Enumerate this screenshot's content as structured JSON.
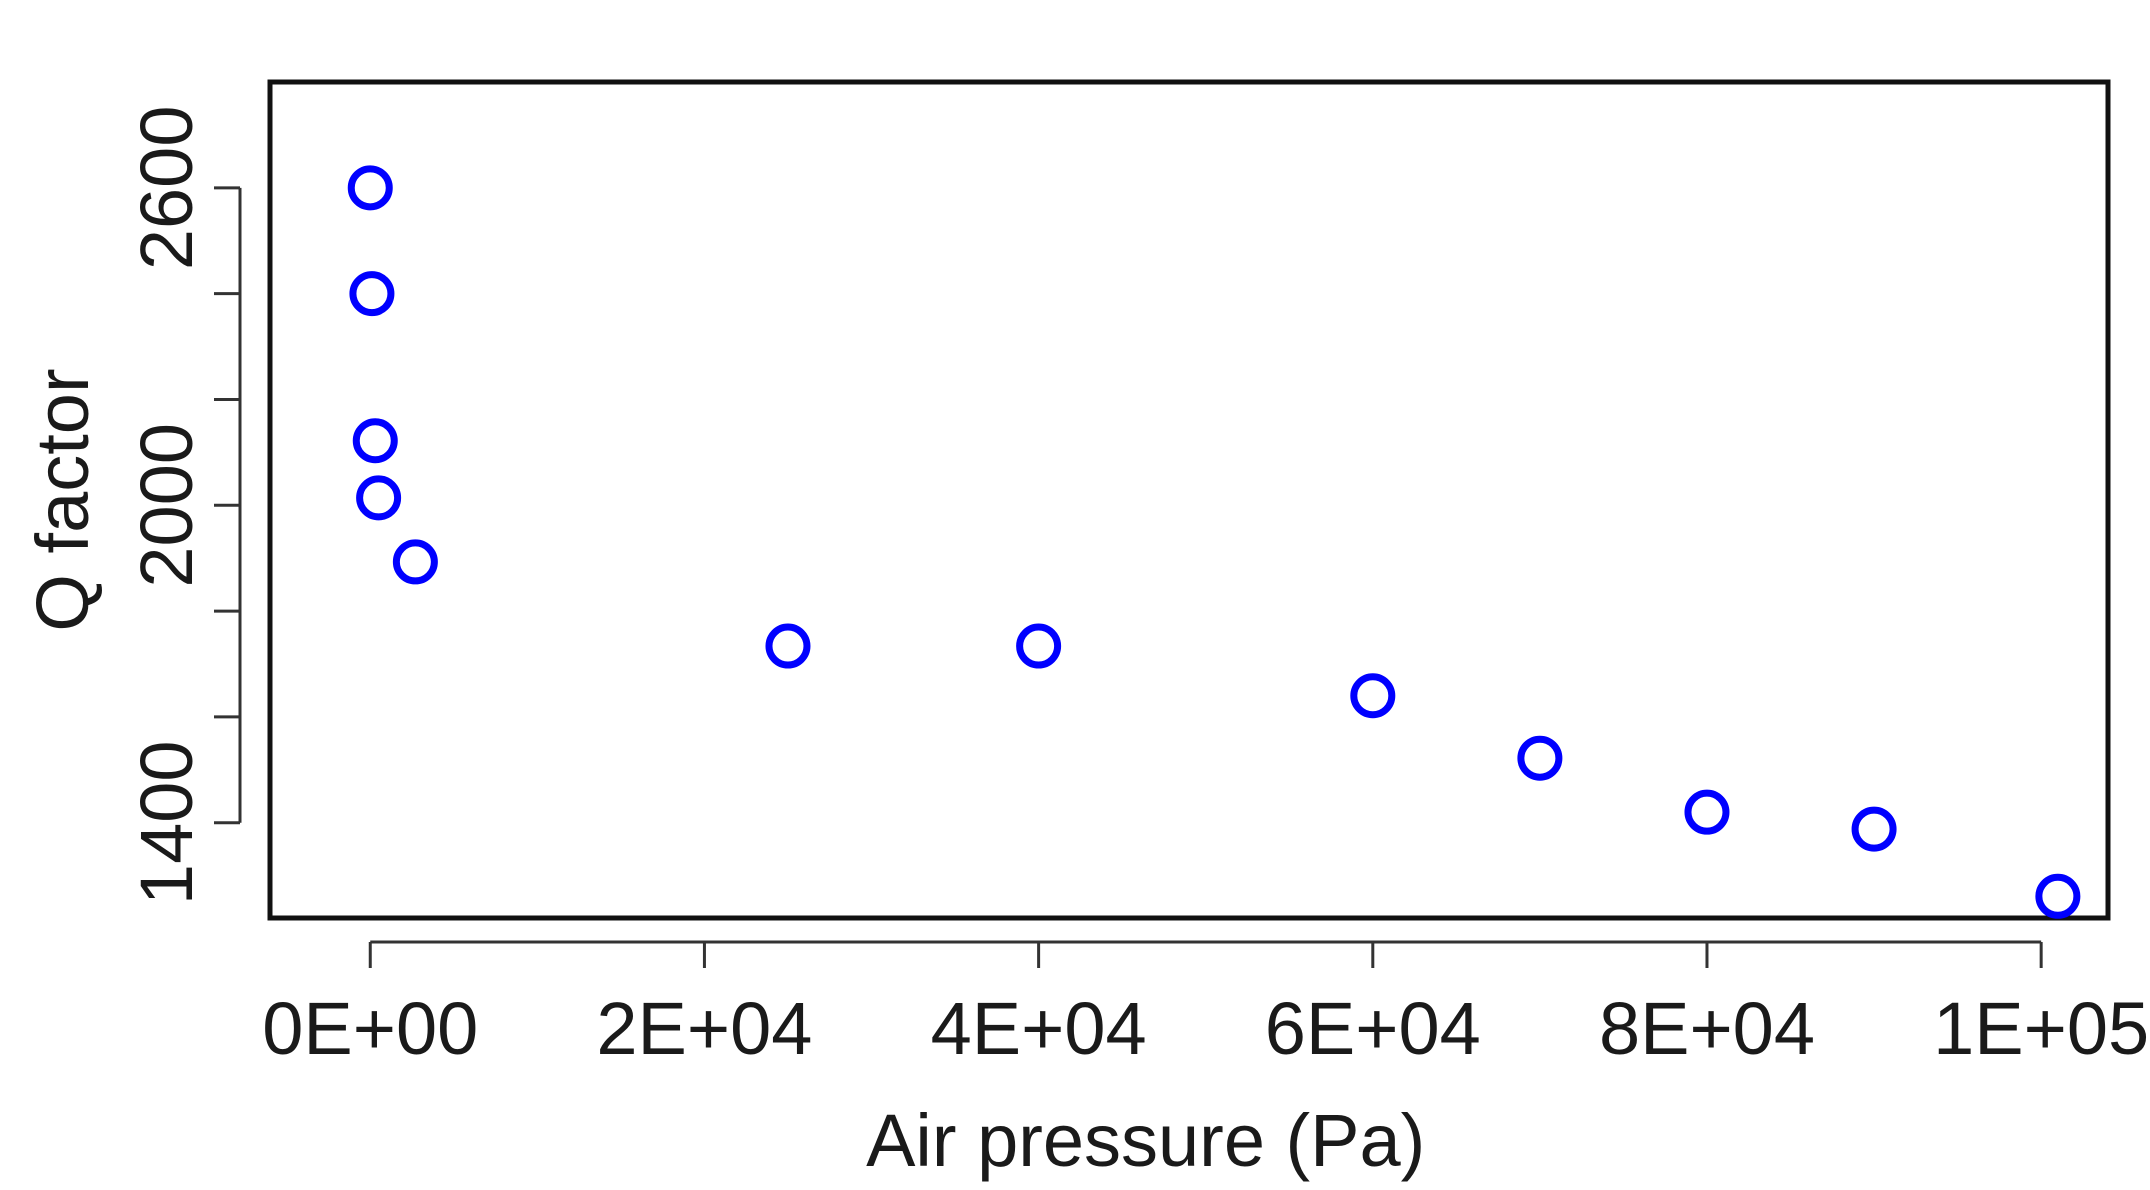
{
  "chart_data": {
    "type": "scatter",
    "title": "",
    "xlabel": "Air pressure (Pa)",
    "ylabel": "Q factor",
    "xlim": [
      -6000,
      104000
    ],
    "ylim": [
      1220,
      2800
    ],
    "x_ticks": [
      {
        "value": 0,
        "label": "0E+00"
      },
      {
        "value": 20000,
        "label": "2E+04"
      },
      {
        "value": 40000,
        "label": "4E+04"
      },
      {
        "value": 60000,
        "label": "6E+04"
      },
      {
        "value": 80000,
        "label": "8E+04"
      },
      {
        "value": 100000,
        "label": "1E+05"
      }
    ],
    "y_ticks": [
      {
        "value": 1400,
        "label": "1400"
      },
      {
        "value": 1600,
        "label": ""
      },
      {
        "value": 1800,
        "label": ""
      },
      {
        "value": 2000,
        "label": "2000"
      },
      {
        "value": 2200,
        "label": ""
      },
      {
        "value": 2400,
        "label": ""
      },
      {
        "value": 2600,
        "label": "2600"
      }
    ],
    "grid": false,
    "marker": "open-circle",
    "marker_color": "#0000ff",
    "series": [
      {
        "points": [
          {
            "x": 0,
            "y": 2600
          },
          {
            "x": 100,
            "y": 2400
          },
          {
            "x": 300,
            "y": 2122
          },
          {
            "x": 500,
            "y": 2014
          },
          {
            "x": 2700,
            "y": 1893
          },
          {
            "x": 25000,
            "y": 1734
          },
          {
            "x": 40000,
            "y": 1734
          },
          {
            "x": 60000,
            "y": 1640
          },
          {
            "x": 70000,
            "y": 1522
          },
          {
            "x": 80000,
            "y": 1420
          },
          {
            "x": 90000,
            "y": 1388
          },
          {
            "x": 101000,
            "y": 1261
          }
        ]
      }
    ]
  }
}
